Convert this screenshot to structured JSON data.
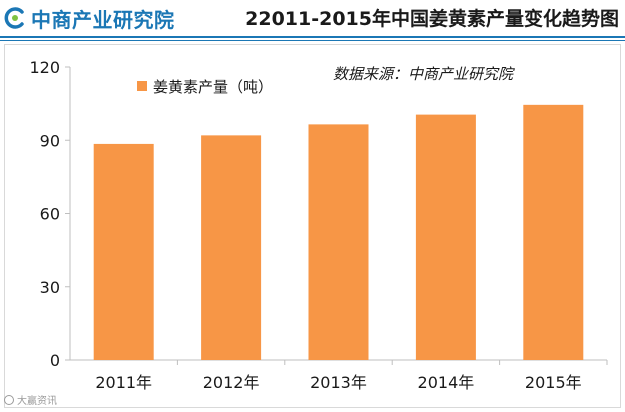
{
  "header": {
    "logo_text": "中商产业研究院",
    "title": "22011-2015年中国姜黄素产量变化趋势图"
  },
  "colors": {
    "brand": "#1b77b5",
    "bar": "#f79646",
    "axis": "#bfbfbf",
    "text": "#1a1a1a"
  },
  "chart_data": {
    "type": "bar",
    "categories": [
      "2011年",
      "2012年",
      "2013年",
      "2014年",
      "2015年"
    ],
    "series": [
      {
        "name": "姜黄素产量（吨）",
        "values": [
          88.5,
          92,
          96.5,
          100.5,
          104.5
        ]
      }
    ],
    "ylim": [
      0,
      120
    ],
    "yticks": [
      "0",
      "30",
      "60",
      "90",
      "120"
    ],
    "xlabel": "",
    "ylabel": "",
    "grid": false,
    "legend": "top-left",
    "annotation": "数据来源：中商产业研究院"
  },
  "watermark": {
    "text": "大赢资讯"
  }
}
